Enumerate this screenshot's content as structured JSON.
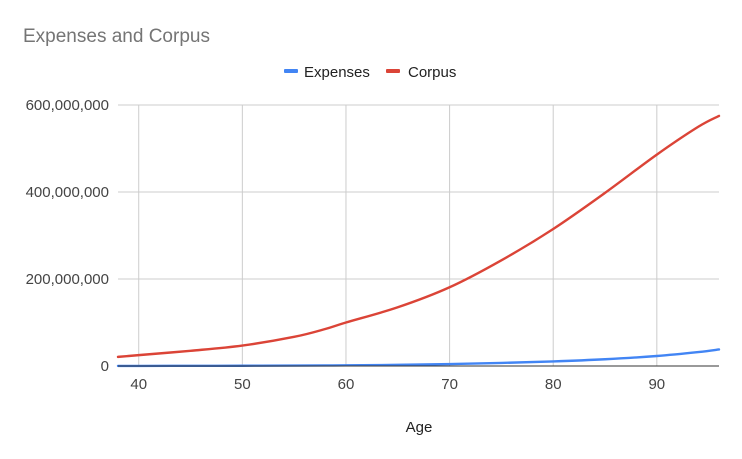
{
  "chart_data": {
    "type": "line",
    "title": "Expenses and Corpus",
    "xlabel": "Age",
    "ylabel": "",
    "xlim": [
      38,
      96
    ],
    "ylim": [
      0,
      600000000
    ],
    "x_ticks": [
      40,
      50,
      60,
      70,
      80,
      90
    ],
    "x_tick_labels": [
      "40",
      "50",
      "60",
      "70",
      "80",
      "90"
    ],
    "y_ticks": [
      0,
      200000000,
      400000000,
      600000000
    ],
    "y_tick_labels": [
      "0",
      "200,000,000",
      "400,000,000",
      "600,000,000"
    ],
    "grid": true,
    "legend_position": "top",
    "x": [
      38,
      40,
      45,
      50,
      55,
      58,
      60,
      65,
      70,
      75,
      80,
      85,
      90,
      94,
      96
    ],
    "series": [
      {
        "name": "Expenses",
        "color": "#4285f4",
        "values": [
          200000,
          250000,
          400000,
          600000,
          900000,
          1200000,
          1500000,
          2600000,
          4500000,
          7000000,
          10500000,
          15500000,
          23000000,
          32000000,
          38000000
        ]
      },
      {
        "name": "Corpus",
        "color": "#db4437",
        "values": [
          21000000,
          25000000,
          35000000,
          47000000,
          67000000,
          85000000,
          100000000,
          135000000,
          181000000,
          243000000,
          315000000,
          398000000,
          486000000,
          550000000,
          575000000
        ]
      }
    ]
  }
}
